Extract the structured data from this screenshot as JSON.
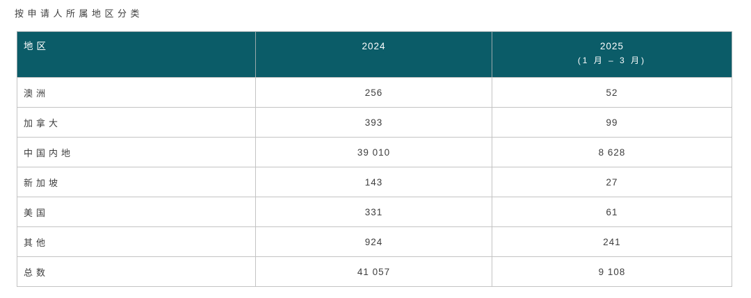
{
  "title": "按申请人所属地区分类",
  "table": {
    "header": {
      "region": "地区",
      "col_2024": "2024",
      "col_2025_line1": "2025",
      "col_2025_line2": "(1 月 – 3 月)"
    },
    "rows": [
      {
        "region": "澳洲",
        "v2024": "256",
        "v2025": "52"
      },
      {
        "region": "加拿大",
        "v2024": "393",
        "v2025": "99"
      },
      {
        "region": "中国内地",
        "v2024": "39 010",
        "v2025": "8 628"
      },
      {
        "region": "新加坡",
        "v2024": "143",
        "v2025": "27"
      },
      {
        "region": "美国",
        "v2024": "331",
        "v2025": "61"
      },
      {
        "region": "其他",
        "v2024": "924",
        "v2025": "241"
      },
      {
        "region": "总数",
        "v2024": "41 057",
        "v2025": "9 108"
      }
    ]
  },
  "colors": {
    "header_bg": "#0b5c68",
    "header_text": "#ffffff",
    "body_text": "#3d3d3d",
    "border": "#c3c3c3"
  }
}
